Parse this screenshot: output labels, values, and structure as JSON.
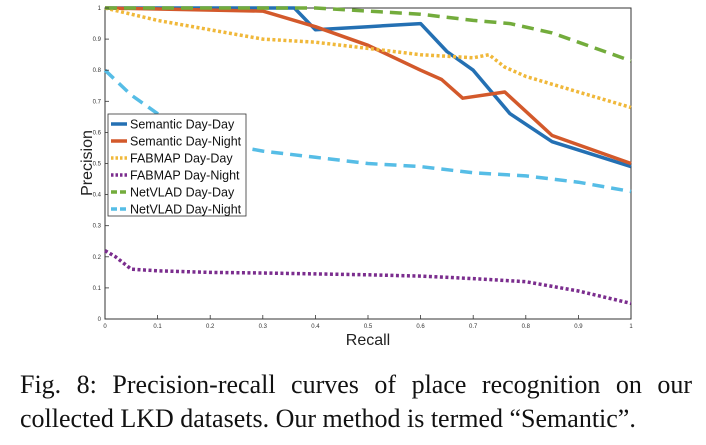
{
  "chart_data": {
    "type": "line",
    "title": "",
    "xlabel": "Recall",
    "ylabel": "Precision",
    "xlim": [
      0,
      1
    ],
    "ylim": [
      0,
      1
    ],
    "xticks": [
      "0",
      "0.1",
      "0.2",
      "0.3",
      "0.4",
      "0.5",
      "0.6",
      "0.7",
      "0.8",
      "0.9",
      "1"
    ],
    "yticks": [
      "0",
      "0.1",
      "0.2",
      "0.3",
      "0.4",
      "0.5",
      "0.6",
      "0.7",
      "0.8",
      "0.9",
      "1"
    ],
    "grid": false,
    "legend_position": "left",
    "series": [
      {
        "name": "Semantic Day-Day",
        "color": "#2470b3",
        "style": "solid",
        "x": [
          0,
          0.3,
          0.36,
          0.4,
          0.5,
          0.6,
          0.65,
          0.7,
          0.77,
          0.85,
          1
        ],
        "y": [
          1,
          1,
          1,
          0.93,
          0.94,
          0.95,
          0.86,
          0.8,
          0.66,
          0.57,
          0.49
        ]
      },
      {
        "name": "Semantic Day-Night",
        "color": "#d3592b",
        "style": "solid",
        "x": [
          0,
          0.3,
          0.4,
          0.5,
          0.6,
          0.64,
          0.68,
          0.76,
          0.85,
          1
        ],
        "y": [
          1,
          0.99,
          0.94,
          0.88,
          0.8,
          0.77,
          0.71,
          0.73,
          0.59,
          0.5
        ]
      },
      {
        "name": "FABMAP Day-Day",
        "color": "#f0b83a",
        "style": "dotted",
        "x": [
          0,
          0.1,
          0.2,
          0.3,
          0.4,
          0.5,
          0.6,
          0.7,
          0.73,
          0.76,
          0.8,
          0.9,
          1
        ],
        "y": [
          1,
          0.96,
          0.93,
          0.9,
          0.89,
          0.87,
          0.85,
          0.84,
          0.85,
          0.81,
          0.78,
          0.73,
          0.68
        ]
      },
      {
        "name": "FABMAP Day-Night",
        "color": "#7b2d8e",
        "style": "dotted",
        "x": [
          0,
          0.02,
          0.05,
          0.1,
          0.2,
          0.3,
          0.4,
          0.5,
          0.6,
          0.7,
          0.8,
          0.9,
          1
        ],
        "y": [
          0.22,
          0.2,
          0.16,
          0.155,
          0.15,
          0.148,
          0.145,
          0.142,
          0.138,
          0.13,
          0.12,
          0.09,
          0.05
        ]
      },
      {
        "name": "NetVLAD Day-Day",
        "color": "#73ac3c",
        "style": "dashed",
        "x": [
          0,
          0.3,
          0.4,
          0.5,
          0.6,
          0.7,
          0.77,
          0.85,
          0.9,
          0.95,
          1
        ],
        "y": [
          1,
          1,
          1,
          0.99,
          0.98,
          0.96,
          0.95,
          0.92,
          0.89,
          0.86,
          0.83
        ]
      },
      {
        "name": "NetVLAD Day-Night",
        "color": "#56bde6",
        "style": "dashed",
        "x": [
          0,
          0.05,
          0.1,
          0.15,
          0.2,
          0.3,
          0.4,
          0.5,
          0.6,
          0.7,
          0.8,
          0.9,
          1
        ],
        "y": [
          0.8,
          0.72,
          0.66,
          0.61,
          0.57,
          0.54,
          0.52,
          0.5,
          0.49,
          0.47,
          0.46,
          0.44,
          0.41
        ]
      }
    ]
  },
  "caption": "Fig. 8: Precision-recall curves of place recognition on our collected LKD datasets. Our method is termed “Semantic”."
}
